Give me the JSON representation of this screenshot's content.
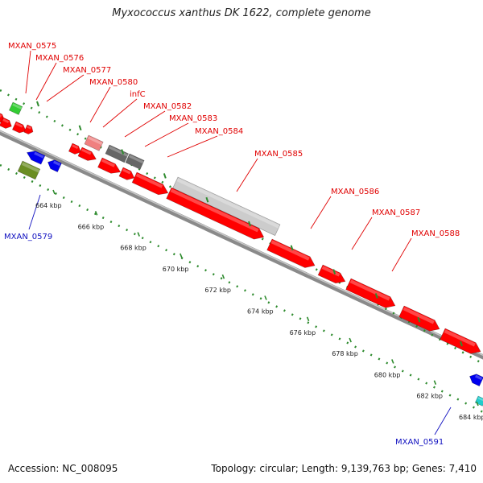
{
  "title": "Myxococcus xanthus DK 1622, complete genome",
  "accession": "Accession: NC_008095",
  "summary": "Topology: circular; Length: 9,139,763 bp; Genes: 7,410",
  "colors": {
    "forward_label": "#e00000",
    "reverse_label": "#1010c0",
    "gene_red": "#ff0000",
    "pseudo_gray": "#cccccc",
    "dark_gray": "#666666",
    "pink": "#f08080",
    "blue": "#0000ee",
    "olive": "#6b8e23",
    "green": "#33cc33",
    "cyan": "#22cccc",
    "backbone": "#888888",
    "tick_green": "#2e8b2e"
  },
  "forward_labels": [
    {
      "text": "MXAN_0575"
    },
    {
      "text": "MXAN_0576"
    },
    {
      "text": "MXAN_0577"
    },
    {
      "text": "MXAN_0580"
    },
    {
      "text": "infC"
    },
    {
      "text": "MXAN_0582"
    },
    {
      "text": "MXAN_0583"
    },
    {
      "text": "MXAN_0584"
    },
    {
      "text": "MXAN_0585"
    },
    {
      "text": "MXAN_0586"
    },
    {
      "text": "MXAN_0587"
    },
    {
      "text": "MXAN_0588"
    }
  ],
  "reverse_labels": [
    {
      "text": "MXAN_0579"
    },
    {
      "text": "MXAN_0591"
    }
  ],
  "scale_ticks": [
    {
      "text": "664 kbp"
    },
    {
      "text": "666 kbp"
    },
    {
      "text": "668 kbp"
    },
    {
      "text": "670 kbp"
    },
    {
      "text": "672 kbp"
    },
    {
      "text": "674 kbp"
    },
    {
      "text": "676 kbp"
    },
    {
      "text": "678 kbp"
    },
    {
      "text": "680 kbp"
    },
    {
      "text": "682 kbp"
    },
    {
      "text": "684 kbp"
    }
  ]
}
